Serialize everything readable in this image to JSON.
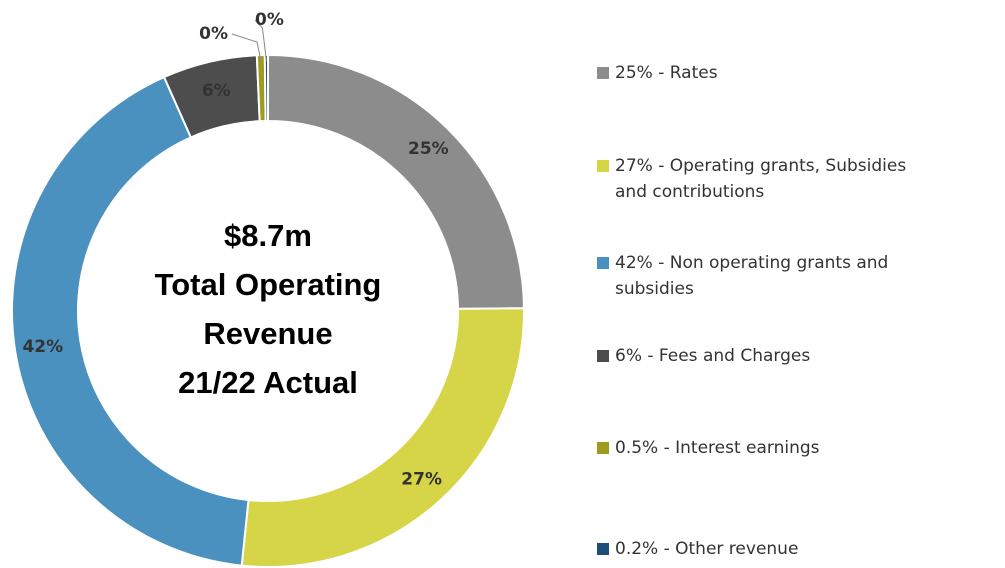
{
  "chart_data": {
    "type": "donut",
    "center_text": [
      "$8.7m",
      "Total Operating",
      "Revenue",
      "21/22 Actual"
    ],
    "categories": [
      "25% - Rates",
      "27% - Operating grants, Subsidies and contributions",
      "42% - Non operating grants and subsidies",
      "6% - Fees and Charges",
      "0.5% - Interest earnings",
      "0.2% - Other revenue"
    ],
    "values": [
      25,
      27,
      42,
      6,
      0.5,
      0.2
    ],
    "value_labels": [
      "25%",
      "27%",
      "42%",
      "6%",
      "0%",
      "0%"
    ],
    "colors": [
      "#8c8c8c",
      "#d6d548",
      "#4b91c0",
      "#4d4d4d",
      "#9f9a20",
      "#1f4e79"
    ]
  }
}
